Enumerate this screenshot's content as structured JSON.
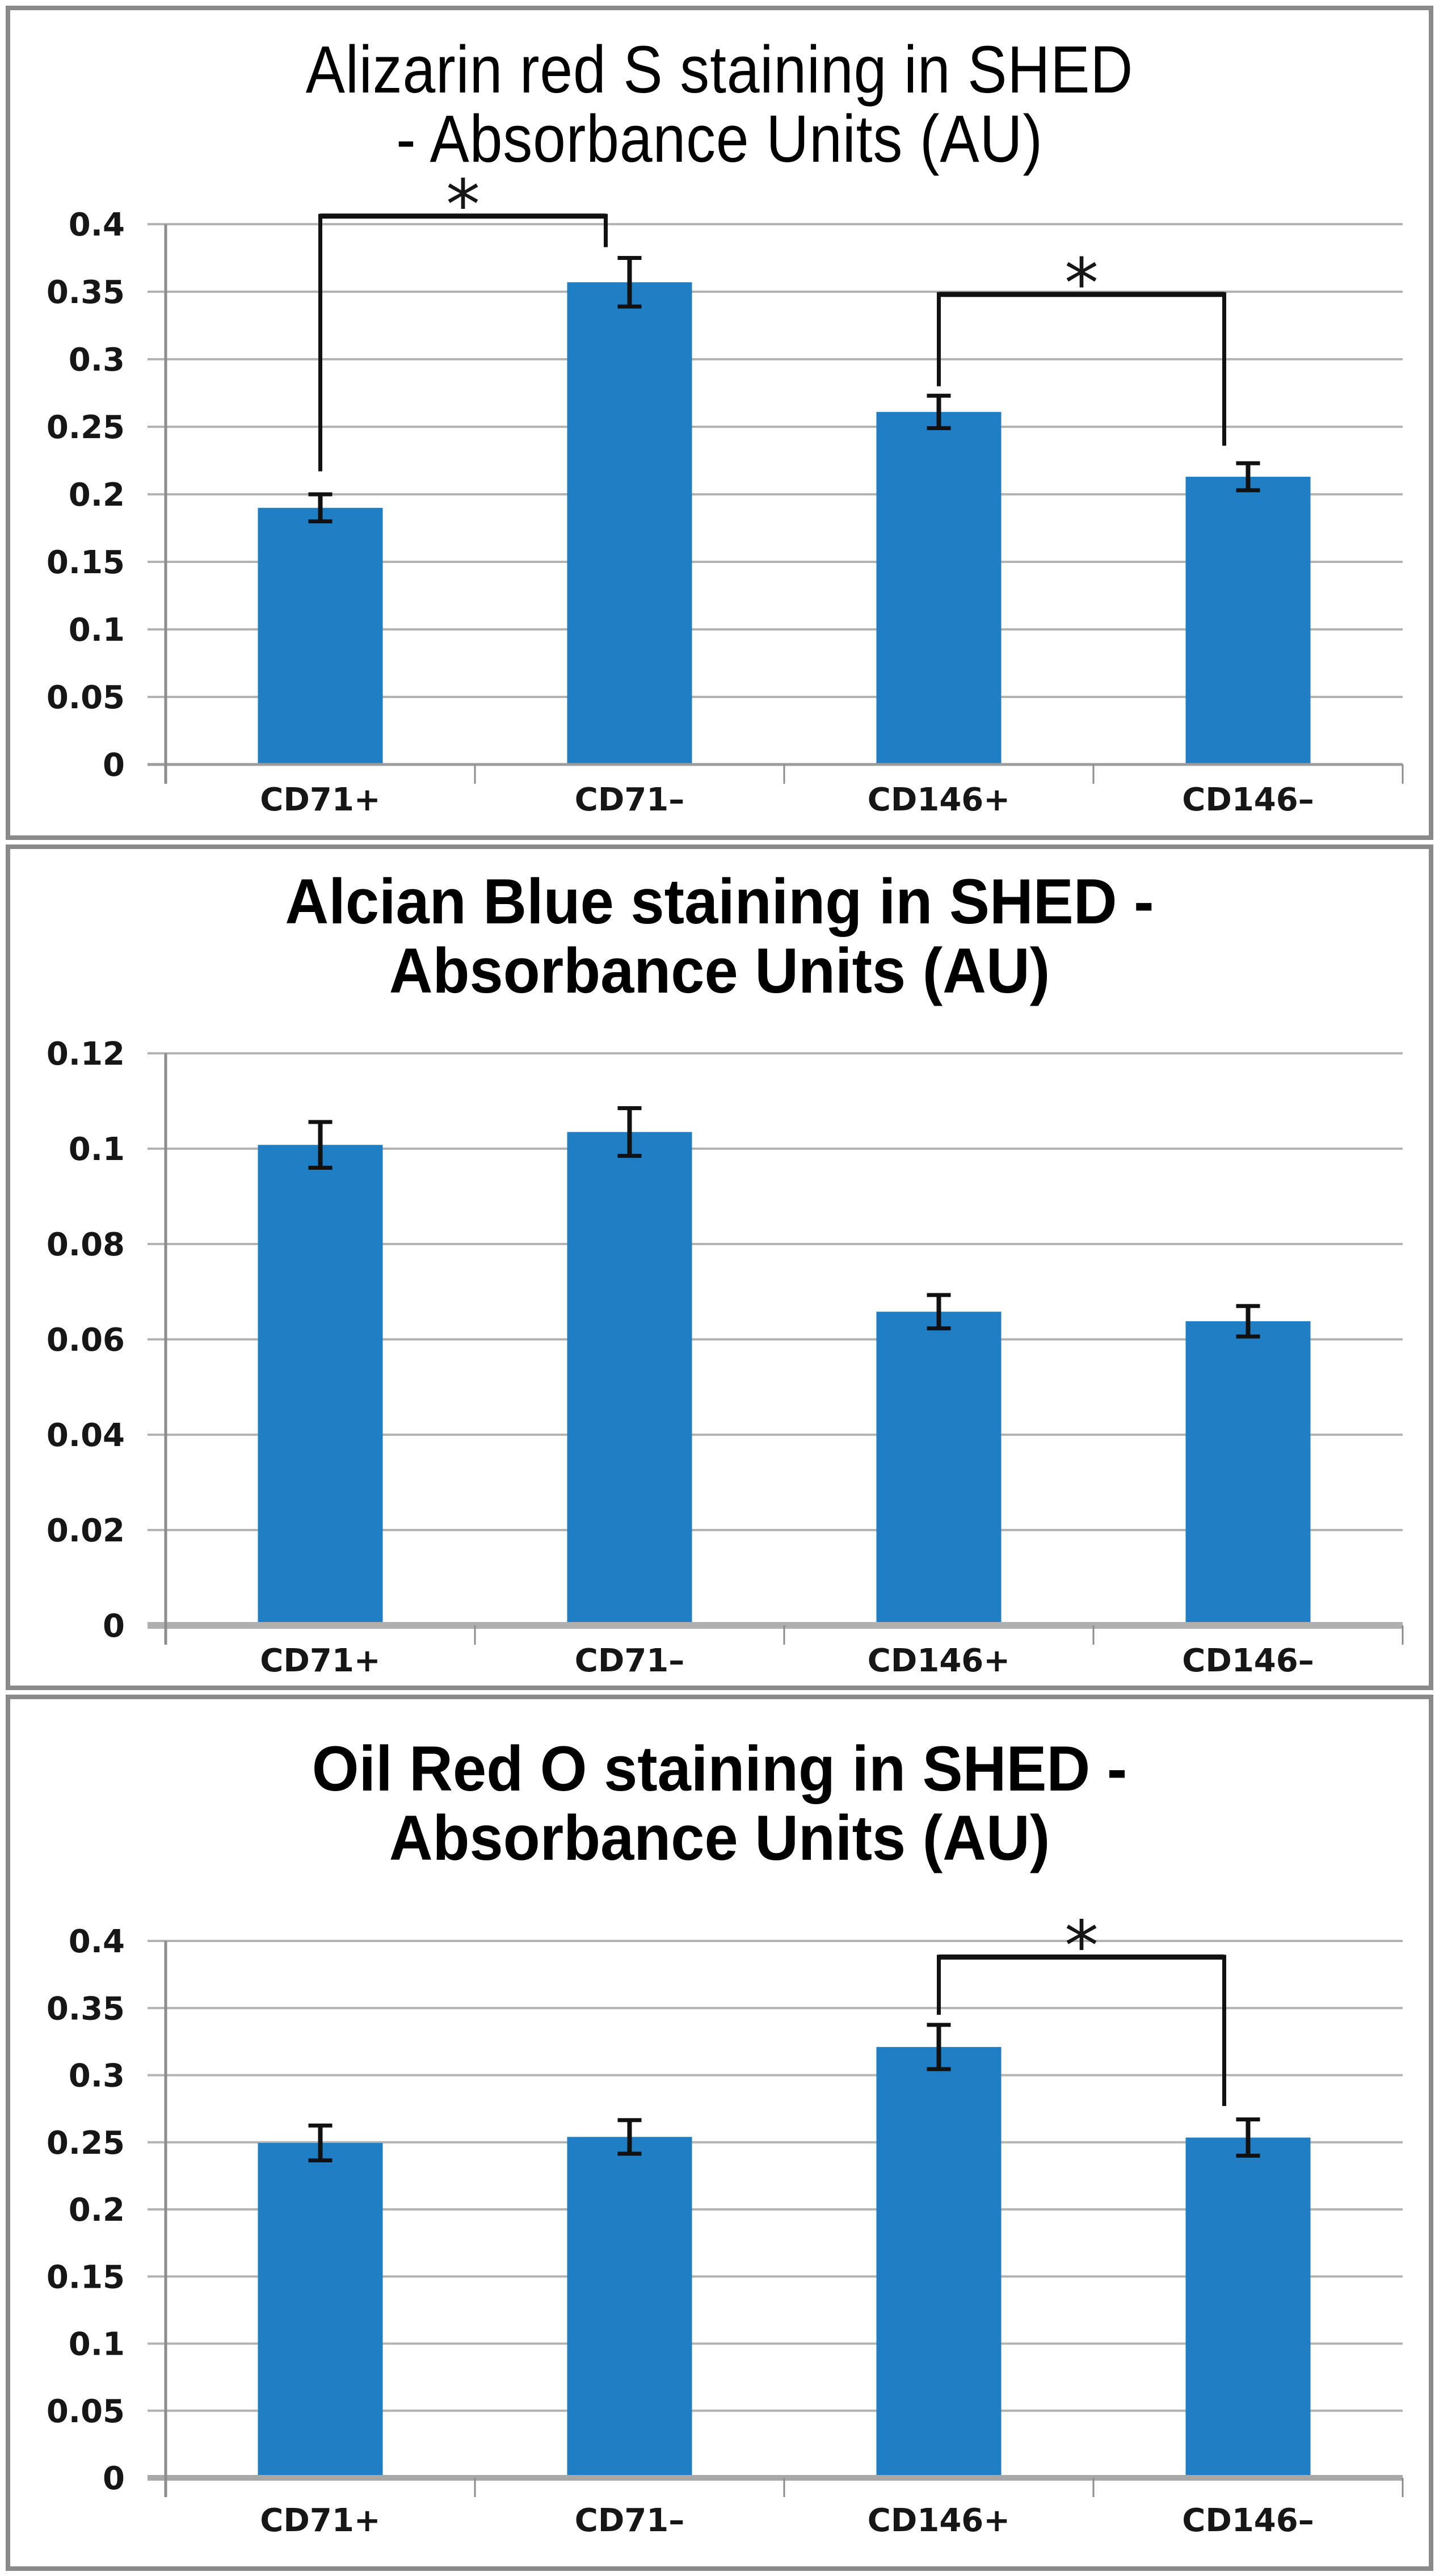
{
  "page": {
    "background_color": "#ffffff",
    "panel_border_color": "#8a8a8a",
    "text_color": "#161616"
  },
  "chart_data": [
    {
      "type": "bar",
      "title_line1": "Alizarin red S staining in SHED",
      "title_line2": "- Absorbance Units (AU)",
      "title_bold": false,
      "xlabel": "",
      "ylabel": "",
      "categories": [
        "CD71+",
        "CD71–",
        "CD146+",
        "CD146–"
      ],
      "values": [
        0.19,
        0.357,
        0.261,
        0.213
      ],
      "errors": [
        0.01,
        0.018,
        0.012,
        0.01
      ],
      "ylim": [
        0,
        0.4
      ],
      "ytick_step": 0.05,
      "ytick_labels": [
        "0",
        "0.05",
        "0.1",
        "0.15",
        "0.2",
        "0.25",
        "0.3",
        "0.35",
        "0.4"
      ],
      "grid": true,
      "legend": "none",
      "bar_color": "#1F7EC4",
      "brackets": [
        {
          "from": 0,
          "to": 1,
          "bar_value": 0.406,
          "left_drop_to": 0.217,
          "right_drop_to": 0.383,
          "label": "*"
        },
        {
          "from": 2,
          "to": 3,
          "bar_value": 0.348,
          "left_drop_to": 0.28,
          "right_drop_to": 0.236,
          "label": "*"
        }
      ]
    },
    {
      "type": "bar",
      "title_line1": "Alcian Blue staining in SHED -",
      "title_line2": "Absorbance Units (AU)",
      "title_bold": true,
      "xlabel": "",
      "ylabel": "",
      "categories": [
        "CD71+",
        "CD71–",
        "CD146+",
        "CD146–"
      ],
      "values": [
        0.1008,
        0.1035,
        0.0658,
        0.0638
      ],
      "errors": [
        0.0048,
        0.005,
        0.0035,
        0.0032
      ],
      "ylim": [
        0,
        0.12
      ],
      "ytick_step": 0.02,
      "ytick_labels": [
        "0",
        "0.02",
        "0.04",
        "0.06",
        "0.08",
        "0.1",
        "0.12"
      ],
      "grid": true,
      "legend": "none",
      "bar_color": "#1F7EC4",
      "brackets": []
    },
    {
      "type": "bar",
      "title_line1": "Oil Red O staining in SHED -",
      "title_line2": "Absorbance Units (AU)",
      "title_bold": true,
      "xlabel": "",
      "ylabel": "",
      "categories": [
        "CD71+",
        "CD71–",
        "CD146+",
        "CD146–"
      ],
      "values": [
        0.2495,
        0.254,
        0.321,
        0.2535
      ],
      "errors": [
        0.013,
        0.0125,
        0.0165,
        0.0135
      ],
      "ylim": [
        0,
        0.4
      ],
      "ytick_step": 0.05,
      "ytick_labels": [
        "0",
        "0.05",
        "0.1",
        "0.15",
        "0.2",
        "0.25",
        "0.3",
        "0.35",
        "0.4"
      ],
      "grid": true,
      "legend": "none",
      "bar_color": "#1F7EC4",
      "brackets": [
        {
          "from": 2,
          "to": 3,
          "bar_value": 0.388,
          "left_drop_to": 0.345,
          "right_drop_to": 0.277,
          "label": "*"
        }
      ]
    }
  ]
}
